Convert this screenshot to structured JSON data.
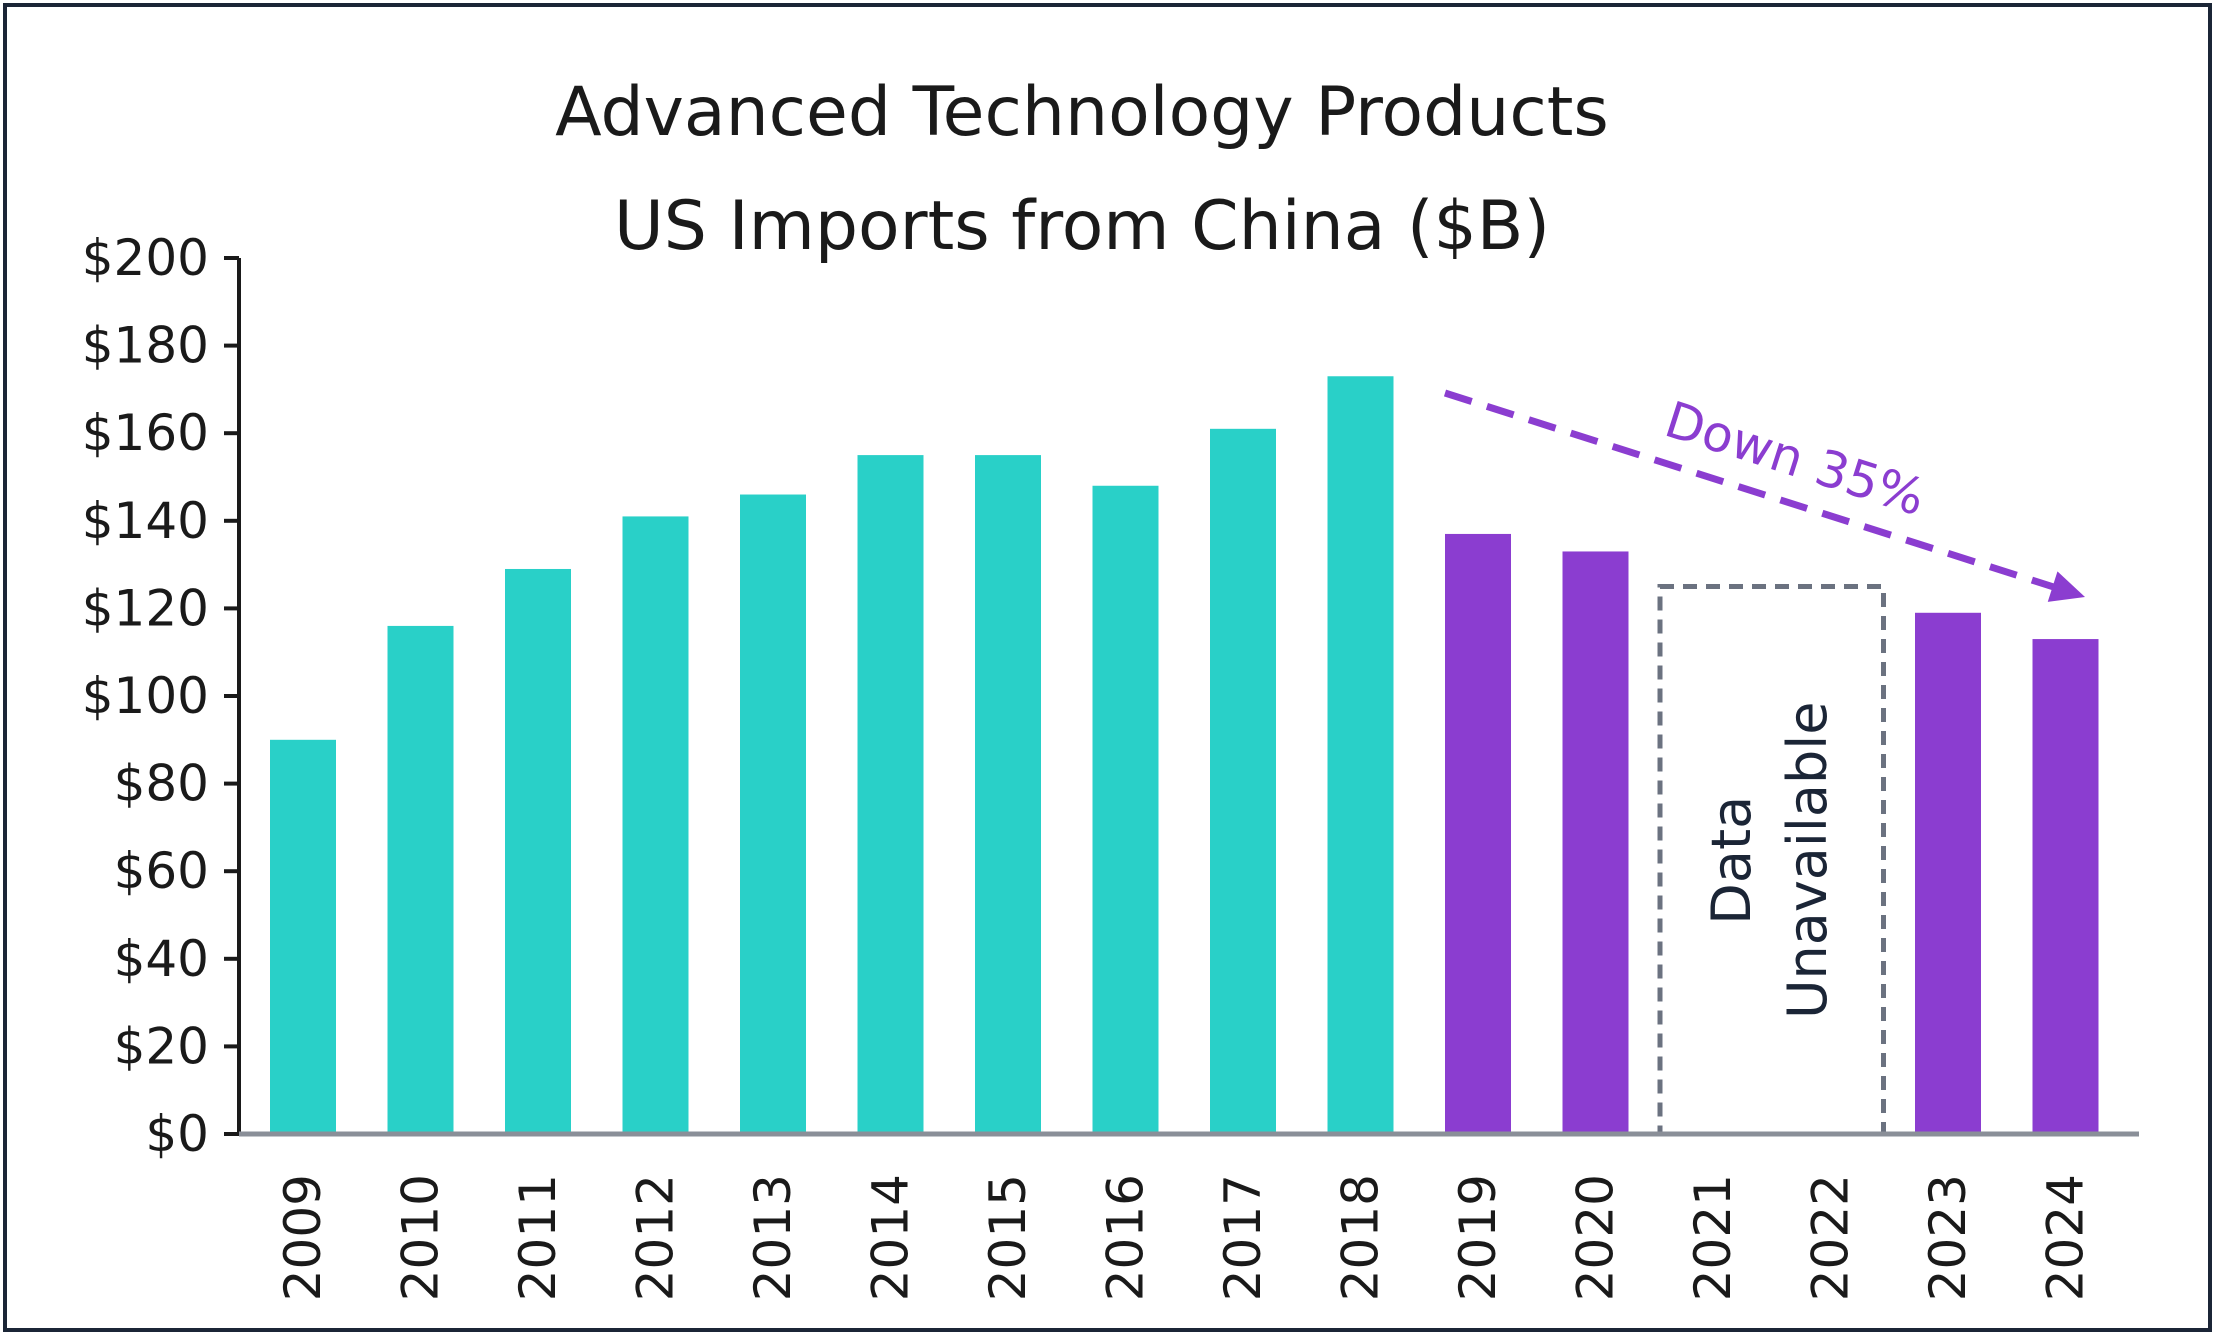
{
  "chart_data": {
    "type": "bar",
    "title_line1": "Advanced Technology Products",
    "title_line2": "US Imports from China ($B)",
    "xlabel": "",
    "ylabel": "",
    "ylim": [
      0,
      200
    ],
    "y_ticks": [
      "$0",
      "$20",
      "$40",
      "$60",
      "$80",
      "$100",
      "$120",
      "$140",
      "$160",
      "$180",
      "$200"
    ],
    "categories": [
      "2009",
      "2010",
      "2011",
      "2012",
      "2013",
      "2014",
      "2015",
      "2016",
      "2017",
      "2018",
      "2019",
      "2020",
      "2021",
      "2022",
      "2023",
      "2024"
    ],
    "values": [
      90,
      116,
      129,
      141,
      146,
      155,
      155,
      148,
      161,
      173,
      137,
      133,
      null,
      null,
      119,
      113
    ],
    "bar_colors": {
      "before": "#29d0c8",
      "after": "#8b3dd0"
    },
    "color_split_year": "2019",
    "annotations": {
      "trend_label": "Down 35%",
      "trend_color": "#8b3dd0",
      "gap_label_line1": "Data",
      "gap_label_line2": "Unavailable",
      "gap_years": [
        "2021",
        "2022"
      ],
      "gap_box_top_value": 125
    },
    "legend": "none",
    "grid": false
  }
}
